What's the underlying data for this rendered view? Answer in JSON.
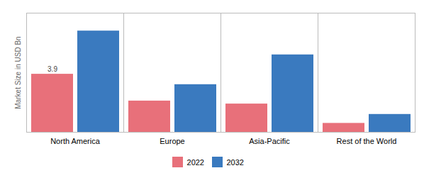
{
  "chart_data": {
    "type": "bar",
    "categories": [
      "North America",
      "Europe",
      "Asia-Pacific",
      "Rest of the World"
    ],
    "series": [
      {
        "name": "2022",
        "color": "#e8707a",
        "values": [
          3.9,
          2.1,
          1.9,
          0.6
        ]
      },
      {
        "name": "2032",
        "color": "#3a7abf",
        "values": [
          6.8,
          3.2,
          5.2,
          1.2
        ]
      }
    ],
    "ylabel": "Market Size in USD Bn",
    "ylim": [
      0,
      8.0
    ],
    "yticks": [],
    "annotations": [
      {
        "text": "3.9",
        "category": "North America",
        "series": "2022",
        "value": 3.9
      }
    ],
    "legend": "bottom",
    "grid": false,
    "tick_labels": "x"
  }
}
